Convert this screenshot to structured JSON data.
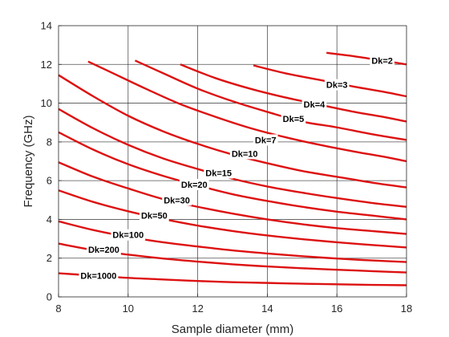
{
  "chart_data": {
    "type": "line",
    "title": "",
    "xlabel": "Sample diameter (mm)",
    "ylabel": "Frequency (GHz)",
    "xlim": [
      8,
      18
    ],
    "ylim": [
      0,
      14
    ],
    "xticks": [
      8,
      10,
      12,
      14,
      16,
      18
    ],
    "xtick_labels": [
      "8",
      "10",
      "12",
      "14",
      "16",
      "18"
    ],
    "yticks": [
      0,
      2,
      4,
      6,
      8,
      10,
      12,
      14
    ],
    "ytick_labels": [
      "0",
      "2",
      "4",
      "6",
      "8",
      "10",
      "12",
      "14"
    ],
    "grid": true,
    "legend": "none",
    "series_color": "#dd1111",
    "series": [
      {
        "name": "Dk=2",
        "x": [
          15.7,
          16.5,
          17.3,
          18.0
        ],
        "y": [
          12.6,
          12.42,
          12.2,
          12.0
        ],
        "label_at": [
          17.3,
          12.2
        ]
      },
      {
        "name": "Dk=3",
        "x": [
          13.6,
          14.5,
          15.5,
          16.5,
          17.3,
          18.0
        ],
        "y": [
          11.95,
          11.55,
          11.2,
          10.85,
          10.6,
          10.35
        ],
        "label_at": [
          16.0,
          10.95
        ]
      },
      {
        "name": "Dk=4",
        "x": [
          11.5,
          12.5,
          13.5,
          14.5,
          15.5,
          16.5,
          17.3,
          18.0
        ],
        "y": [
          12.0,
          11.3,
          10.75,
          10.3,
          9.92,
          9.55,
          9.3,
          9.05
        ],
        "label_at": [
          15.35,
          9.95
        ]
      },
      {
        "name": "Dk=5",
        "x": [
          10.2,
          11.0,
          12.0,
          13.0,
          14.0,
          15.0,
          16.0,
          17.0,
          18.0
        ],
        "y": [
          12.2,
          11.55,
          10.75,
          10.1,
          9.55,
          9.05,
          8.75,
          8.4,
          8.1
        ],
        "label_at": [
          14.75,
          9.2
        ]
      },
      {
        "name": "Dk=7",
        "x": [
          8.85,
          9.5,
          10.5,
          11.5,
          12.5,
          13.5,
          14.5,
          15.5,
          16.5,
          17.3,
          18.0
        ],
        "y": [
          12.15,
          11.6,
          10.75,
          9.95,
          9.3,
          8.72,
          8.25,
          7.85,
          7.5,
          7.25,
          7.0
        ],
        "label_at": [
          13.95,
          8.1
        ]
      },
      {
        "name": "Dk=10",
        "x": [
          8.0,
          9.0,
          10.0,
          11.0,
          12.0,
          13.0,
          14.0,
          15.0,
          16.0,
          17.0,
          18.0
        ],
        "y": [
          11.45,
          10.35,
          9.35,
          8.55,
          7.9,
          7.35,
          6.9,
          6.5,
          6.2,
          5.9,
          5.65
        ],
        "label_at": [
          13.35,
          7.4
        ]
      },
      {
        "name": "Dk=15",
        "x": [
          8.0,
          9.0,
          10.0,
          11.0,
          12.0,
          13.0,
          14.0,
          15.0,
          16.0,
          17.0,
          18.0
        ],
        "y": [
          9.7,
          8.7,
          7.85,
          7.15,
          6.6,
          6.1,
          5.7,
          5.38,
          5.1,
          4.85,
          4.65
        ],
        "label_at": [
          12.6,
          6.4
        ]
      },
      {
        "name": "Dk=20",
        "x": [
          8.0,
          9.0,
          10.0,
          11.0,
          12.0,
          13.0,
          14.0,
          15.0,
          16.0,
          17.0,
          18.0
        ],
        "y": [
          8.5,
          7.6,
          6.85,
          6.25,
          5.75,
          5.3,
          4.95,
          4.65,
          4.4,
          4.2,
          4.0
        ],
        "label_at": [
          11.9,
          5.8
        ]
      },
      {
        "name": "Dk=30",
        "x": [
          8.0,
          9.0,
          10.0,
          11.0,
          12.0,
          13.0,
          14.0,
          15.0,
          16.0,
          17.0,
          18.0
        ],
        "y": [
          6.95,
          6.2,
          5.6,
          5.05,
          4.65,
          4.3,
          4.0,
          3.75,
          3.55,
          3.4,
          3.25
        ],
        "label_at": [
          11.4,
          5.0
        ]
      },
      {
        "name": "Dk=50",
        "x": [
          8.0,
          9.0,
          10.0,
          11.0,
          12.0,
          13.0,
          14.0,
          15.0,
          16.0,
          17.0,
          18.0
        ],
        "y": [
          5.5,
          4.9,
          4.42,
          4.02,
          3.68,
          3.4,
          3.17,
          2.98,
          2.82,
          2.68,
          2.55
        ],
        "label_at": [
          10.75,
          4.2
        ]
      },
      {
        "name": "Dk=100",
        "x": [
          8.0,
          9.0,
          10.0,
          11.0,
          12.0,
          13.0,
          14.0,
          15.0,
          16.0,
          17.0,
          18.0
        ],
        "y": [
          3.9,
          3.45,
          3.1,
          2.82,
          2.6,
          2.4,
          2.24,
          2.1,
          1.98,
          1.88,
          1.8
        ],
        "label_at": [
          10.0,
          3.2
        ]
      },
      {
        "name": "Dk=200",
        "x": [
          8.0,
          9.0,
          10.0,
          11.0,
          12.0,
          13.0,
          14.0,
          15.0,
          16.0,
          17.0,
          18.0
        ],
        "y": [
          2.75,
          2.42,
          2.18,
          1.98,
          1.82,
          1.68,
          1.57,
          1.48,
          1.4,
          1.33,
          1.26
        ],
        "label_at": [
          9.3,
          2.45
        ]
      },
      {
        "name": "Dk=1000",
        "x": [
          8.0,
          9.0,
          10.0,
          11.0,
          12.0,
          13.0,
          14.0,
          15.0,
          16.0,
          17.0,
          18.0
        ],
        "y": [
          1.22,
          1.1,
          0.98,
          0.9,
          0.82,
          0.76,
          0.72,
          0.68,
          0.65,
          0.62,
          0.6
        ],
        "label_at": [
          9.15,
          1.1
        ]
      }
    ]
  }
}
